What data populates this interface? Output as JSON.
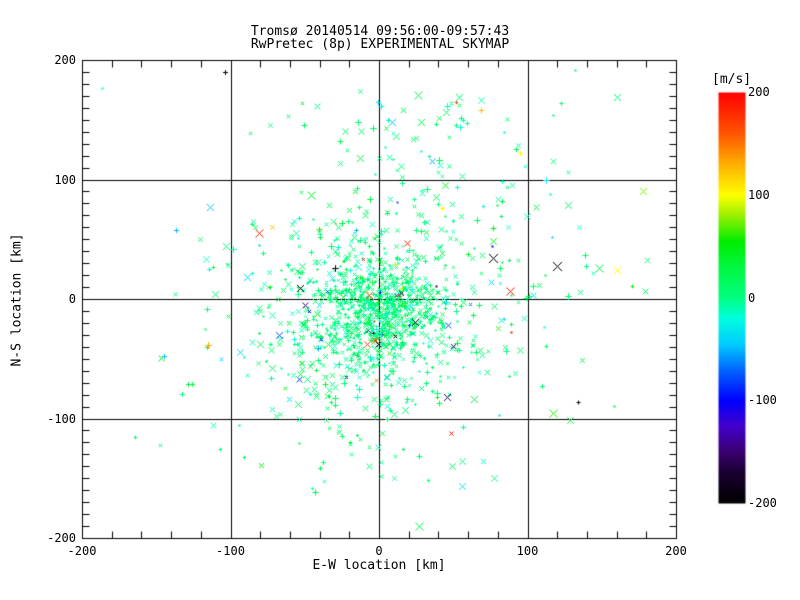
{
  "chart_data": {
    "type": "scatter",
    "title": "Tromsø 20140514 09:56:00-09:57:43",
    "subtitle": "RwPretec (8p) EXPERIMENTAL SKYMAP",
    "xlabel": "E-W location [km]",
    "ylabel": "N-S location [km]",
    "xlim": [
      -200,
      200
    ],
    "ylim": [
      -200,
      200
    ],
    "xticks": [
      -200,
      -100,
      0,
      100,
      200
    ],
    "yticks": [
      -200,
      -100,
      0,
      100,
      200
    ],
    "x_minor_step": 20,
    "y_minor_step": 10,
    "grid": true,
    "axis_color": "#000000",
    "background": "#ffffff",
    "colorbar": {
      "label": "[m/s]",
      "min": -200,
      "max": 200,
      "ticks": [
        200,
        100,
        0,
        -100,
        -200
      ],
      "position": "right"
    },
    "colormap": [
      [
        -200,
        "#000000"
      ],
      [
        -170,
        "#1a0030"
      ],
      [
        -150,
        "#3a0070"
      ],
      [
        -125,
        "#4400cc"
      ],
      [
        -100,
        "#0000ff"
      ],
      [
        -70,
        "#0066ff"
      ],
      [
        -45,
        "#00ccff"
      ],
      [
        -20,
        "#00ffe0"
      ],
      [
        0,
        "#00ff80"
      ],
      [
        30,
        "#00f840"
      ],
      [
        55,
        "#00ee00"
      ],
      [
        80,
        "#99f000"
      ],
      [
        100,
        "#ffff00"
      ],
      [
        130,
        "#ffb000"
      ],
      [
        160,
        "#ff5500"
      ],
      [
        200,
        "#ff0000"
      ]
    ],
    "symbol_legend": {
      "x": "cross",
      "p": "plus",
      "d": "dot"
    },
    "features": [
      [
        -104,
        190,
        -195,
        "p",
        5
      ],
      [
        26,
        171,
        20,
        "x",
        8
      ],
      [
        54,
        169,
        3,
        "x",
        7
      ],
      [
        9,
        148,
        -45,
        "x",
        7
      ],
      [
        160,
        169,
        0,
        "x",
        7
      ],
      [
        -114,
        77,
        -42,
        "x",
        7
      ],
      [
        -13,
        118,
        30,
        "x",
        7
      ],
      [
        -46,
        87,
        35,
        "x",
        8
      ],
      [
        178,
        90,
        75,
        "x",
        7
      ],
      [
        -81,
        55,
        185,
        "x",
        8
      ],
      [
        -103,
        44,
        0,
        "x",
        7
      ],
      [
        -89,
        18,
        -40,
        "x",
        7
      ],
      [
        -53,
        9,
        -195,
        "x",
        7
      ],
      [
        77,
        34,
        -195,
        "x",
        9
      ],
      [
        120,
        28,
        -195,
        "x",
        9
      ],
      [
        148,
        26,
        25,
        "x",
        8
      ],
      [
        160,
        24,
        100,
        "x",
        8
      ],
      [
        88,
        7,
        190,
        "x",
        8
      ],
      [
        104,
        3,
        -35,
        "x",
        6
      ],
      [
        76,
        44,
        -100,
        "d",
        3
      ],
      [
        89,
        -28,
        190,
        "d",
        3
      ],
      [
        46,
        -82,
        -150,
        "x",
        7
      ],
      [
        64,
        -84,
        30,
        "x",
        7
      ],
      [
        117,
        -95,
        60,
        "x",
        8
      ],
      [
        134,
        -86,
        -195,
        "p",
        4
      ],
      [
        81,
        -97,
        -40,
        "d",
        3
      ],
      [
        27,
        -190,
        25,
        "x",
        8
      ],
      [
        -7,
        3,
        175,
        "x",
        7
      ],
      [
        -1,
        -38,
        -195,
        "x",
        6
      ],
      [
        19,
        47,
        185,
        "x",
        6
      ],
      [
        24,
        -19,
        -195,
        "x",
        7
      ],
      [
        -8,
        -38,
        170,
        "x",
        6
      ]
    ],
    "clusters": [
      {
        "cx": 0,
        "cy": -12,
        "sx": 20,
        "sy": 22,
        "n": 750,
        "v": 2,
        "vs": 10,
        "szMin": 2,
        "szMax": 5
      },
      {
        "cx": -2,
        "cy": -10,
        "sx": 40,
        "sy": 42,
        "n": 400,
        "v": 4,
        "vs": 15,
        "szMin": 2.5,
        "szMax": 6
      },
      {
        "cx": 5,
        "cy": 5,
        "sx": 70,
        "sy": 68,
        "n": 170,
        "v": 6,
        "vs": 22,
        "szMin": 3,
        "szMax": 7
      },
      {
        "cx": 45,
        "cy": 95,
        "sx": 45,
        "sy": 38,
        "n": 55,
        "v": 4,
        "vs": 15,
        "szMin": 3,
        "szMax": 7
      },
      {
        "cx": -40,
        "cy": -55,
        "sx": 32,
        "sy": 30,
        "n": 70,
        "v": 8,
        "vs": 14,
        "szMin": 3,
        "szMax": 7
      },
      {
        "cx": -8,
        "cy": -125,
        "sx": 22,
        "sy": 18,
        "n": 22,
        "v": 15,
        "vs": 12,
        "szMin": 3,
        "szMax": 7
      },
      {
        "cx": 25,
        "cy": 150,
        "sx": 55,
        "sy": 22,
        "n": 26,
        "v": 4,
        "vs": 12,
        "szMin": 3.5,
        "szMax": 7
      },
      {
        "cx": 0,
        "cy": 10,
        "sx": 110,
        "sy": 85,
        "n": 45,
        "v": 5,
        "vs": 30,
        "szMin": 3,
        "szMax": 7
      }
    ],
    "symbol_weights": {
      "x": 0.55,
      "p": 0.33,
      "d": 0.12
    },
    "speckle_frac": 0.035,
    "seed": 20140514
  }
}
